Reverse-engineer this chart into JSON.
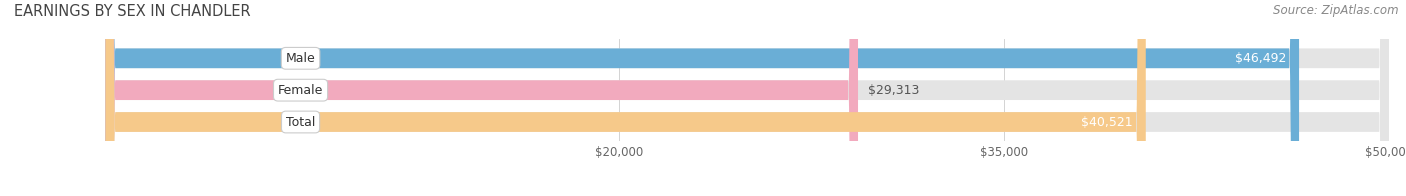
{
  "title": "EARNINGS BY SEX IN CHANDLER",
  "source": "Source: ZipAtlas.com",
  "categories": [
    "Male",
    "Female",
    "Total"
  ],
  "values": [
    46492,
    29313,
    40521
  ],
  "bar_colors": [
    "#6aaed6",
    "#f2aabe",
    "#f6c98a"
  ],
  "bar_bg_color": "#e4e4e4",
  "xmin": 20000,
  "xmax": 50000,
  "xticks": [
    20000,
    35000,
    50000
  ],
  "xtick_labels": [
    "$20,000",
    "$35,000",
    "$50,000"
  ],
  "value_labels": [
    "$46,492",
    "$29,313",
    "$40,521"
  ],
  "title_fontsize": 10.5,
  "source_fontsize": 8.5,
  "bar_label_fontsize": 9,
  "value_fontsize": 9
}
